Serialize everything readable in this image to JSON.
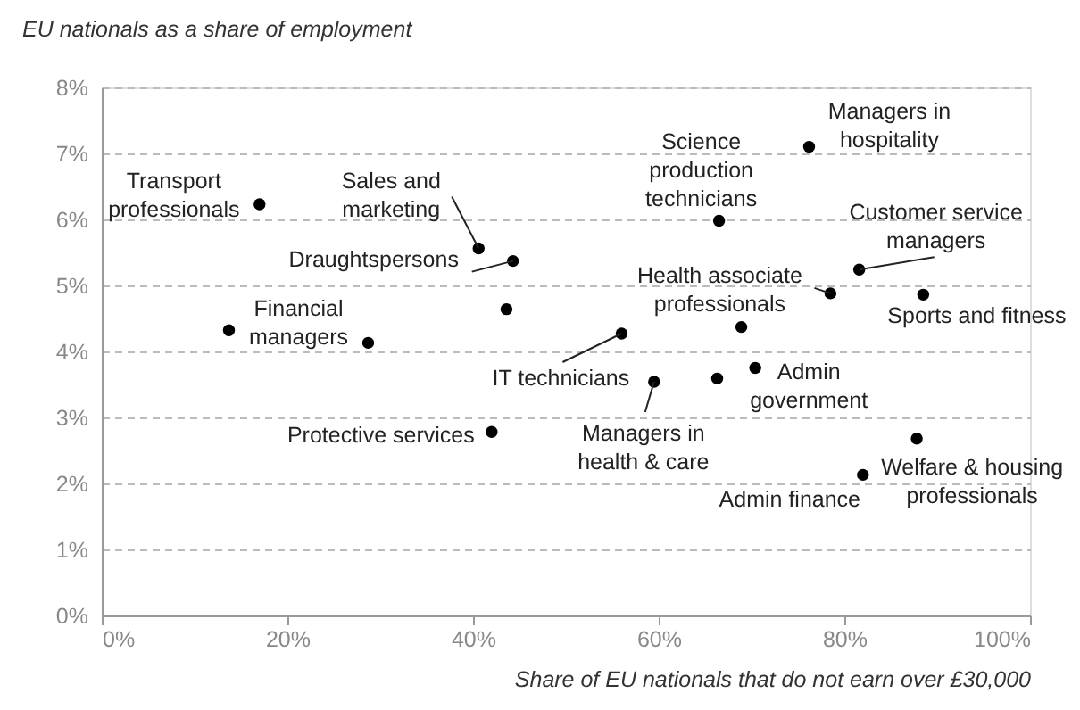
{
  "chart_data": {
    "type": "scatter",
    "ylabel": "EU nationals as a share of employment",
    "xlabel": "Share of EU nationals that do not earn over £30,000",
    "x": [
      17.0,
      40.6,
      44.3,
      43.6,
      13.7,
      28.7,
      42.0,
      56.0,
      59.5,
      66.3,
      70.4,
      68.9,
      87.8,
      82.0,
      76.2,
      66.5,
      81.6,
      78.5,
      88.5
    ],
    "values": [
      6.23,
      5.56,
      5.37,
      4.64,
      4.32,
      4.13,
      2.78,
      4.27,
      3.54,
      3.59,
      3.75,
      4.37,
      2.68,
      2.13,
      7.1,
      5.98,
      5.24,
      4.88,
      4.86
    ],
    "color": "#000000",
    "marker": "circle",
    "xlim": [
      0,
      100
    ],
    "ylim": [
      0,
      8
    ],
    "xticks": [
      {
        "value": 0,
        "label": "0%"
      },
      {
        "value": 20,
        "label": "20%"
      },
      {
        "value": 40,
        "label": "40%"
      },
      {
        "value": 60,
        "label": "60%"
      },
      {
        "value": 80,
        "label": "80%"
      },
      {
        "value": 100,
        "label": "100%"
      }
    ],
    "yticks": [
      {
        "value": 0,
        "label": "0%"
      },
      {
        "value": 1,
        "label": "1%"
      },
      {
        "value": 2,
        "label": "2%"
      },
      {
        "value": 3,
        "label": "3%"
      },
      {
        "value": 4,
        "label": "4%"
      },
      {
        "value": 5,
        "label": "5%"
      },
      {
        "value": 6,
        "label": "6%"
      },
      {
        "value": 7,
        "label": "7%"
      },
      {
        "value": 8,
        "label": "8%"
      }
    ],
    "grid": "y",
    "annotations": [
      {
        "text": "Transport\nprofessionals",
        "x": 17.0,
        "y": 6.23
      },
      {
        "text": "Sales and\nmarketing",
        "x": 40.6,
        "y": 5.56
      },
      {
        "text": "Draughtspersons",
        "x": 44.3,
        "y": 5.37
      },
      {
        "text": "Financial\nmanagers",
        "x": 13.7,
        "y": 4.32
      },
      {
        "text": "Protective services",
        "x": 42.0,
        "y": 2.78
      },
      {
        "text": "IT technicians",
        "x": 56.0,
        "y": 4.27
      },
      {
        "text": "Managers in\nhealth & care",
        "x": 59.5,
        "y": 3.54
      },
      {
        "text": "Admin\ngovernment",
        "x": 70.4,
        "y": 3.75
      },
      {
        "text": "Welfare & housing\nprofessionals",
        "x": 87.8,
        "y": 2.68
      },
      {
        "text": "Admin finance",
        "x": 82.0,
        "y": 2.13
      },
      {
        "text": "Managers in\nhospitality",
        "x": 76.2,
        "y": 7.1
      },
      {
        "text": "Science\nproduction\ntechnicians",
        "x": 66.5,
        "y": 5.98
      },
      {
        "text": "Customer service\nmanagers",
        "x": 81.6,
        "y": 5.24
      },
      {
        "text": "Health associate\nprofessionals",
        "x": 78.5,
        "y": 4.88
      },
      {
        "text": "Sports and fitness",
        "x": 88.5,
        "y": 4.86
      }
    ]
  }
}
